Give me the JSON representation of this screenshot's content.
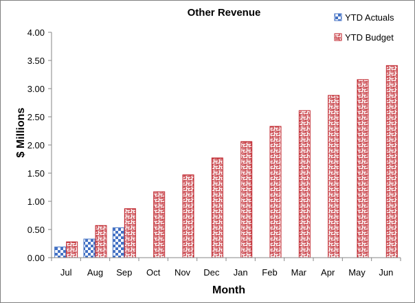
{
  "chart_data": {
    "type": "bar",
    "title": "Other Revenue",
    "xlabel": "Month",
    "ylabel": "$ Millions",
    "categories": [
      "Jul",
      "Aug",
      "Sep",
      "Oct",
      "Nov",
      "Dec",
      "Jan",
      "Feb",
      "Mar",
      "Apr",
      "May",
      "Jun"
    ],
    "ylim": [
      0,
      4
    ],
    "yticks": [
      "0.00",
      "0.50",
      "1.00",
      "1.50",
      "2.00",
      "2.50",
      "3.00",
      "3.50",
      "4.00"
    ],
    "grid": false,
    "legend_position": "top-right",
    "series": [
      {
        "name": "YTD Actuals",
        "color": "#4472c4",
        "pattern": "checker",
        "values": [
          0.19,
          0.33,
          0.53,
          null,
          null,
          null,
          null,
          null,
          null,
          null,
          null,
          null
        ]
      },
      {
        "name": "YTD Budget",
        "color": "#c0262d",
        "pattern": "maze",
        "values": [
          0.28,
          0.57,
          0.87,
          1.17,
          1.47,
          1.77,
          2.06,
          2.33,
          2.61,
          2.88,
          3.16,
          3.41
        ]
      }
    ]
  }
}
